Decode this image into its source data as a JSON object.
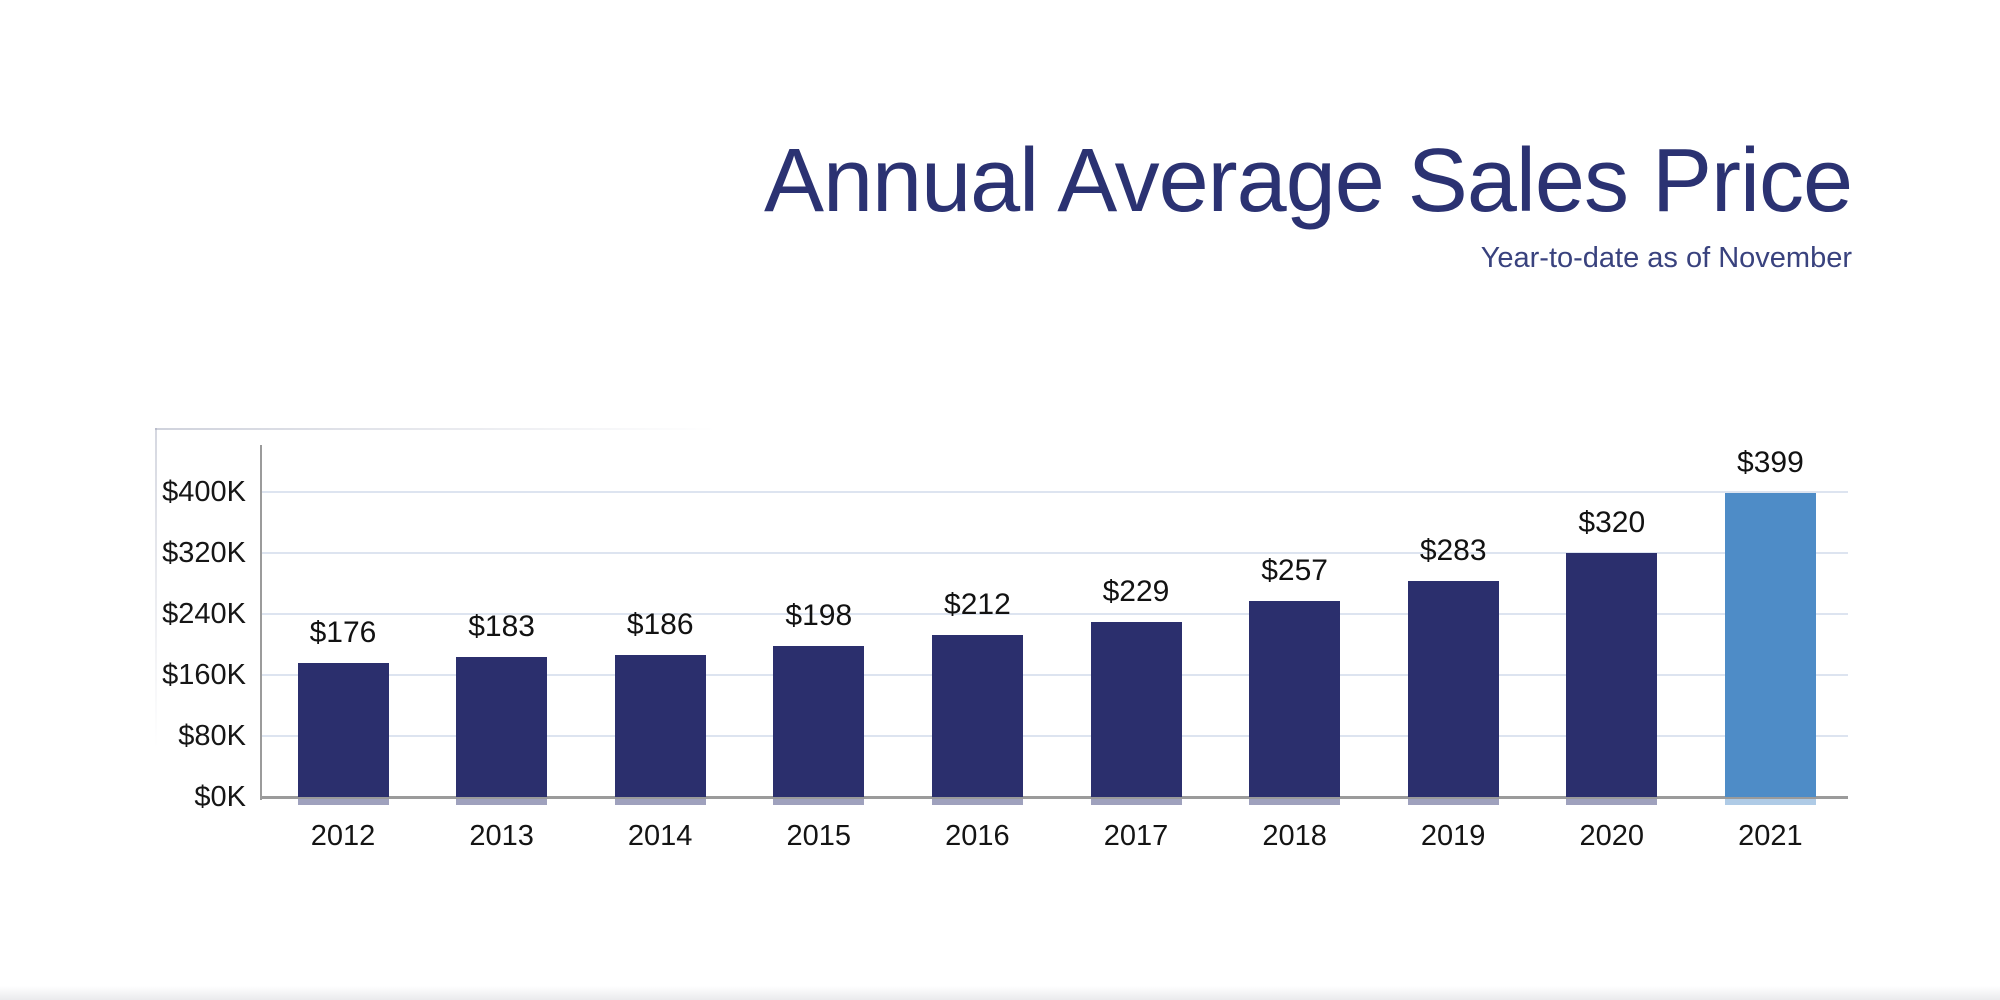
{
  "header": {
    "title": "Annual Average Sales Price",
    "subtitle": "Year-to-date as of November"
  },
  "chart_data": {
    "type": "bar",
    "title": "Annual Average Sales Price",
    "subtitle": "Year-to-date as of November",
    "categories": [
      "2012",
      "2013",
      "2014",
      "2015",
      "2016",
      "2017",
      "2018",
      "2019",
      "2020",
      "2021"
    ],
    "values": [
      176,
      183,
      186,
      198,
      212,
      229,
      257,
      283,
      320,
      399
    ],
    "bar_labels": [
      "$176",
      "$183",
      "$186",
      "$198",
      "$212",
      "$229",
      "$257",
      "$283",
      "$320",
      "$399"
    ],
    "values_unit_hint": "thousands of dollars (K)",
    "y_ticks": [
      {
        "value": 0,
        "label": "$0K"
      },
      {
        "value": 80,
        "label": "$80K"
      },
      {
        "value": 160,
        "label": "$160K"
      },
      {
        "value": 240,
        "label": "$240K"
      },
      {
        "value": 320,
        "label": "$320K"
      },
      {
        "value": 400,
        "label": "$400K"
      }
    ],
    "ylim": [
      0,
      460
    ],
    "grid": true,
    "legend": false,
    "highlight_index": 9,
    "colors": {
      "bar": "#2b2f6d",
      "highlight_bar": "#4e8cc7",
      "title": "#2b3272",
      "subtitle": "#39427e",
      "gridline": "#dde4f0",
      "axis": "#9b9b9b",
      "label_text": "#141414"
    }
  }
}
